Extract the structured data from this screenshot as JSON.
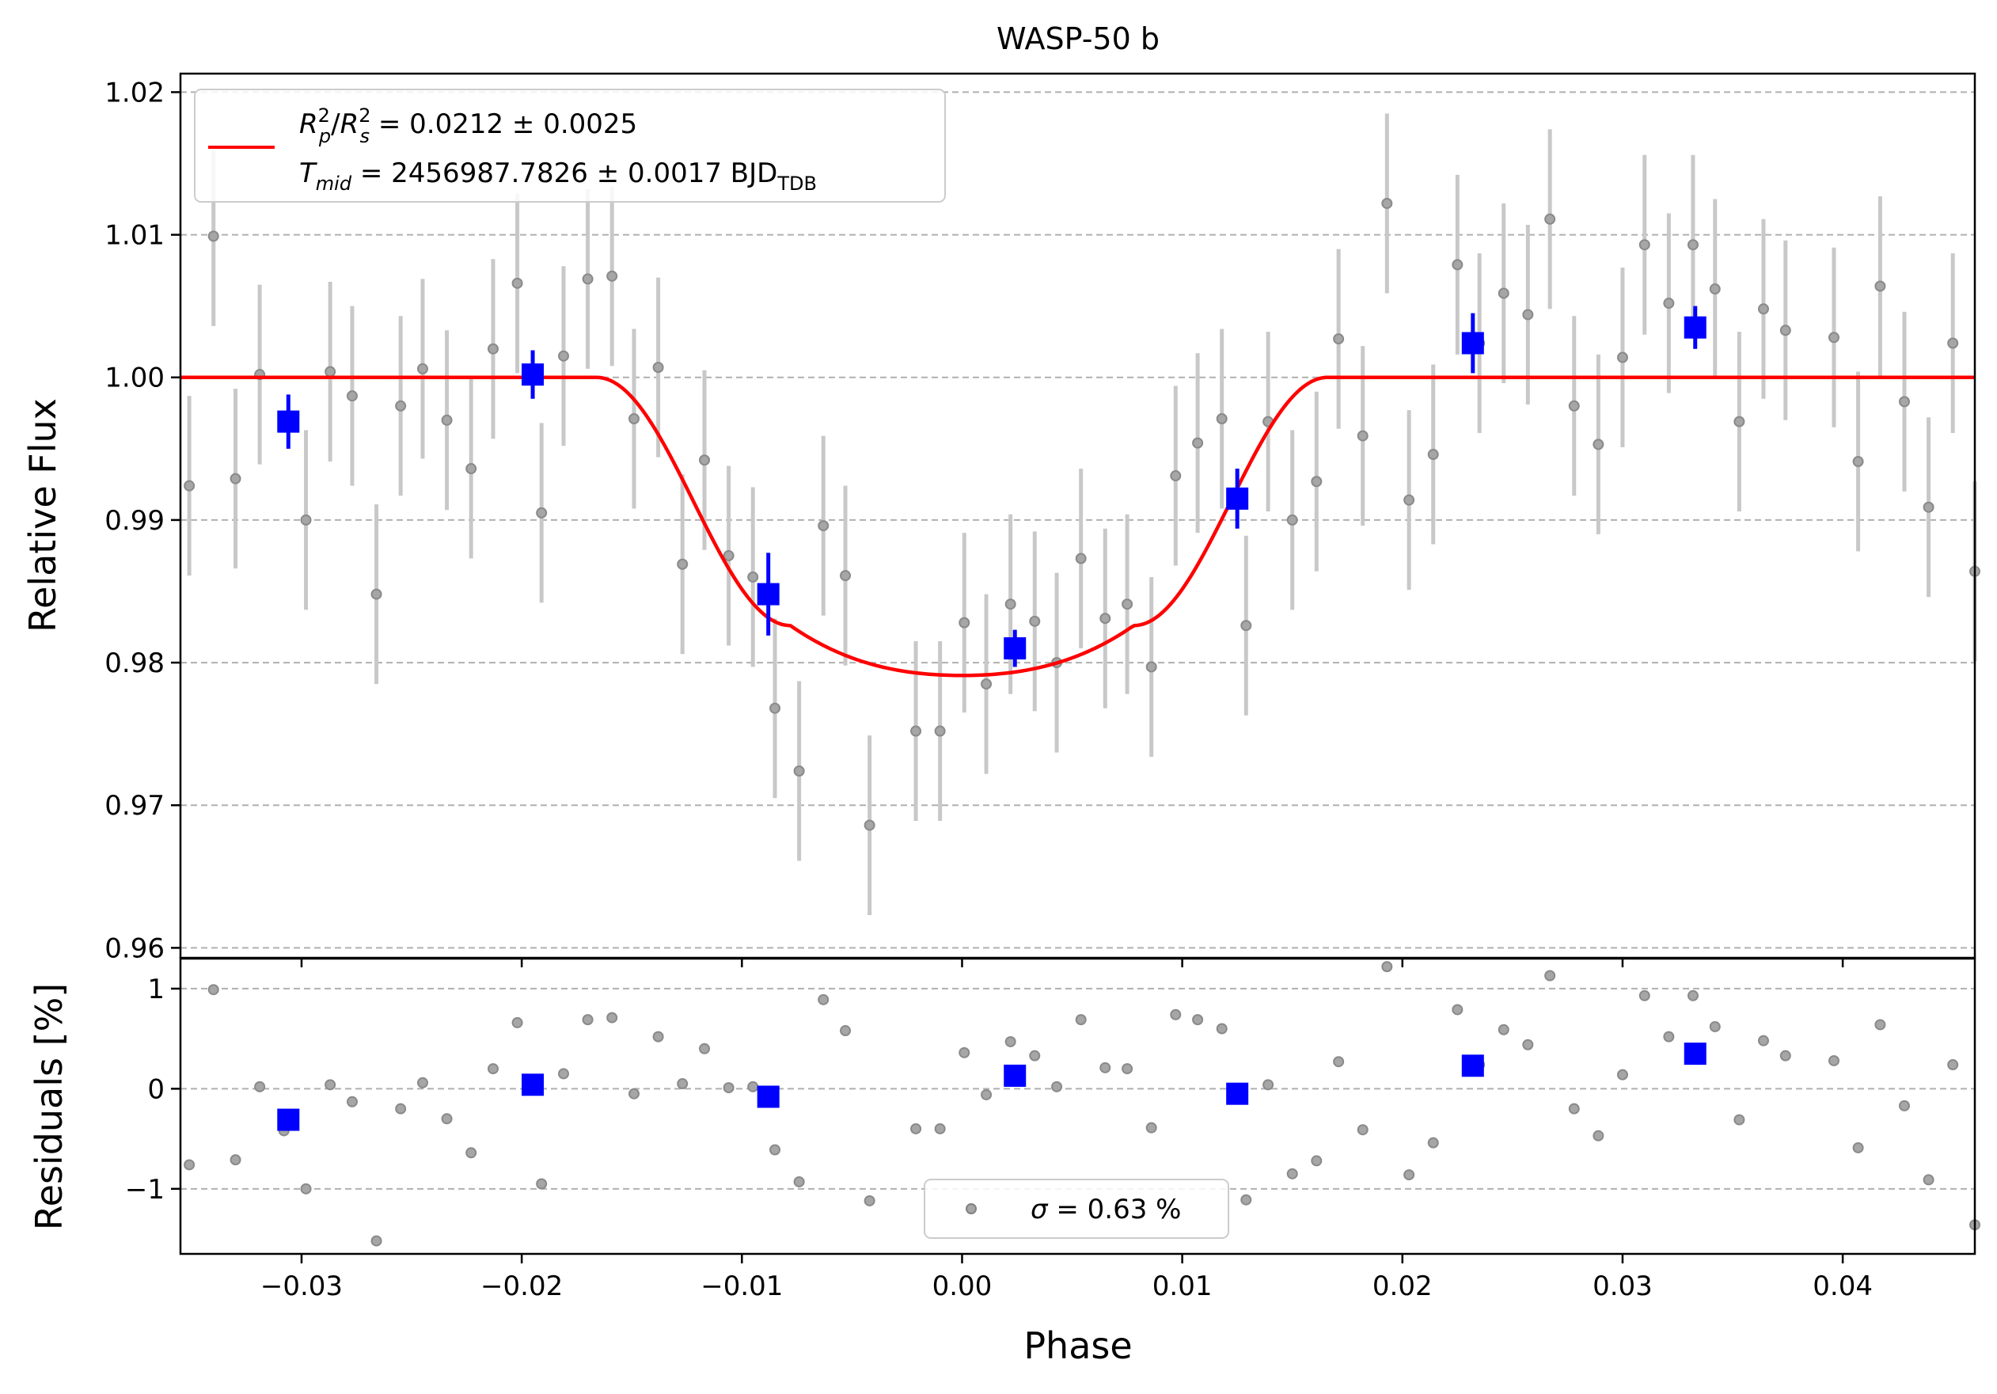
{
  "chart_data": [
    {
      "type": "scatter",
      "panel": "main",
      "title": "WASP-50 b",
      "xlabel": "",
      "ylabel": "Relative Flux",
      "xlim": [
        -0.0355,
        0.046
      ],
      "ylim": [
        0.9593,
        1.0213
      ],
      "x_ticks": [
        -0.03,
        -0.02,
        -0.01,
        0.0,
        0.01,
        0.02,
        0.03,
        0.04
      ],
      "x_tick_labels": [
        "",
        "",
        "",
        "",
        "",
        "",
        "",
        ""
      ],
      "y_ticks": [
        0.96,
        0.97,
        0.98,
        0.99,
        1.0,
        1.01,
        1.02
      ],
      "y_tick_labels": [
        "0.96",
        "0.97",
        "0.98",
        "0.99",
        "1.00",
        "1.01",
        "1.02"
      ],
      "grid": "horizontal dashed",
      "legend_position": "top-left",
      "legend": {
        "model_line_label_rp": "R",
        "rp_sub": "p",
        "rp_sup": "2",
        "slash": "/",
        "rs_main": "R",
        "rs_sub": "s",
        "rs_sup": "2",
        "rp_value": " = 0.0212 ± 0.0025",
        "tmid_main": "T",
        "tmid_sub": "mid",
        "tmid_value": " = 2456987.7826 ± 0.0017 BJD",
        "tdb_sub": "TDB"
      },
      "colors": {
        "model": "#ff0000",
        "binned": "#0000ff",
        "raw": "#808080"
      },
      "model": {
        "baseline": 1.0,
        "depth_min": 0.9791,
        "t14_half": 0.0166,
        "t23_half": 0.0078
      },
      "raw_points": {
        "x": [
          -0.0356,
          -0.0351,
          -0.034,
          -0.033,
          -0.0319,
          -0.0298,
          -0.0287,
          -0.0277,
          -0.0266,
          -0.0255,
          -0.0245,
          -0.0234,
          -0.0223,
          -0.0213,
          -0.0202,
          -0.0191,
          -0.0181,
          -0.017,
          -0.0159,
          -0.0149,
          -0.0138,
          -0.0127,
          -0.0117,
          -0.0106,
          -0.0095,
          -0.0085,
          -0.0074,
          -0.0063,
          -0.0053,
          -0.0042,
          -0.0021,
          -0.001,
          0.0001,
          0.0011,
          0.0022,
          0.0033,
          0.0043,
          0.0054,
          0.0065,
          0.0075,
          0.0086,
          0.0097,
          0.0107,
          0.0118,
          0.0129,
          0.0139,
          0.015,
          0.0161,
          0.0171,
          0.0182,
          0.0193,
          0.0203,
          0.0214,
          0.0225,
          0.0235,
          0.0246,
          0.0257,
          0.0267,
          0.0278,
          0.0289,
          0.03,
          0.031,
          0.0321,
          0.0332,
          0.0342,
          0.0353,
          0.0364,
          0.0374,
          0.0396,
          0.0407,
          0.0417,
          0.0428,
          0.0439,
          0.045,
          0.046
        ],
        "y": [
          1.0029,
          0.9924,
          1.0099,
          0.9929,
          1.0002,
          0.99,
          1.0004,
          0.9987,
          0.9848,
          0.998,
          1.0006,
          0.997,
          0.9936,
          1.002,
          1.0066,
          0.9905,
          1.0015,
          1.0069,
          1.0071,
          0.9971,
          1.0007,
          0.9869,
          0.9942,
          0.9875,
          0.986,
          0.9768,
          0.9724,
          0.9896,
          0.9861,
          0.9686,
          0.9752,
          0.9752,
          0.9828,
          0.9785,
          0.9841,
          0.9829,
          0.98,
          0.9873,
          0.9831,
          0.9841,
          0.9797,
          0.9931,
          0.9954,
          0.9971,
          0.9826,
          0.9969,
          0.99,
          0.9927,
          1.0027,
          0.9959,
          1.0122,
          0.9914,
          0.9946,
          1.0079,
          1.0024,
          1.0059,
          1.0044,
          1.0111,
          0.998,
          0.9953,
          1.0014,
          1.0093,
          1.0052,
          1.0093,
          1.0062,
          0.9969,
          1.0048,
          1.0033,
          1.0028,
          0.9941,
          1.0064,
          0.9983,
          0.9909,
          1.0024,
          0.9864
        ],
        "yerr": [
          0.0063,
          0.0063,
          0.0063,
          0.0063,
          0.0063,
          0.0063,
          0.0063,
          0.0063,
          0.0063,
          0.0063,
          0.0063,
          0.0063,
          0.0063,
          0.0063,
          0.0063,
          0.0063,
          0.0063,
          0.0063,
          0.0063,
          0.0063,
          0.0063,
          0.0063,
          0.0063,
          0.0063,
          0.0063,
          0.0063,
          0.0063,
          0.0063,
          0.0063,
          0.0063,
          0.0063,
          0.0063,
          0.0063,
          0.0063,
          0.0063,
          0.0063,
          0.0063,
          0.0063,
          0.0063,
          0.0063,
          0.0063,
          0.0063,
          0.0063,
          0.0063,
          0.0063,
          0.0063,
          0.0063,
          0.0063,
          0.0063,
          0.0063,
          0.0063,
          0.0063,
          0.0063,
          0.0063,
          0.0063,
          0.0063,
          0.0063,
          0.0063,
          0.0063,
          0.0063,
          0.0063,
          0.0063,
          0.0063,
          0.0063,
          0.0063,
          0.0063,
          0.0063,
          0.0063,
          0.0063,
          0.0063,
          0.0063,
          0.0063,
          0.0063,
          0.0063,
          0.0063
        ]
      },
      "binned_points": {
        "x": [
          -0.0306,
          -0.0195,
          -0.0088,
          0.0024,
          0.0125,
          0.0232,
          0.0333
        ],
        "y": [
          0.9969,
          1.0002,
          0.9848,
          0.981,
          0.9915,
          1.0024,
          1.0035
        ],
        "yerr": [
          0.0019,
          0.0017,
          0.0029,
          0.0013,
          0.0021,
          0.0021,
          0.0015
        ]
      }
    },
    {
      "type": "scatter",
      "panel": "residuals",
      "xlabel": "Phase",
      "ylabel": "Residuals [%]",
      "xlim": [
        -0.0355,
        0.046
      ],
      "ylim": [
        -1.65,
        1.3
      ],
      "x_ticks": [
        -0.03,
        -0.02,
        -0.01,
        0.0,
        0.01,
        0.02,
        0.03,
        0.04
      ],
      "x_tick_labels": [
        "−0.03",
        "−0.02",
        "−0.01",
        "0.00",
        "0.01",
        "0.02",
        "0.03",
        "0.04"
      ],
      "y_ticks": [
        -1,
        0,
        1
      ],
      "y_tick_labels": [
        "−1",
        "0",
        "1"
      ],
      "grid": "horizontal dashed",
      "legend_position": "bottom-center",
      "legend": {
        "sigma_symbol": "σ",
        "sigma_value": " = 0.63 %"
      },
      "raw_points": {
        "x": [
          -0.0356,
          -0.0351,
          -0.034,
          -0.033,
          -0.0319,
          -0.0308,
          -0.0298,
          -0.0287,
          -0.0277,
          -0.0266,
          -0.0255,
          -0.0245,
          -0.0234,
          -0.0223,
          -0.0213,
          -0.0202,
          -0.0191,
          -0.0181,
          -0.017,
          -0.0159,
          -0.0149,
          -0.0138,
          -0.0127,
          -0.0117,
          -0.0106,
          -0.0095,
          -0.0085,
          -0.0074,
          -0.0063,
          -0.0053,
          -0.0042,
          -0.0021,
          -0.001,
          0.0001,
          0.0011,
          0.0022,
          0.0033,
          0.0043,
          0.0054,
          0.0065,
          0.0075,
          0.0086,
          0.0097,
          0.0107,
          0.0118,
          0.0129,
          0.0139,
          0.015,
          0.0161,
          0.0171,
          0.0182,
          0.0193,
          0.0203,
          0.0214,
          0.0225,
          0.0235,
          0.0246,
          0.0257,
          0.0267,
          0.0278,
          0.0289,
          0.03,
          0.031,
          0.0321,
          0.0332,
          0.0342,
          0.0353,
          0.0364,
          0.0374,
          0.0396,
          0.0407,
          0.0417,
          0.0428,
          0.0439,
          0.045,
          0.046
        ],
        "y": [
          0.28,
          -0.76,
          0.99,
          -0.71,
          0.02,
          -0.42,
          -1.0,
          0.04,
          -0.13,
          -1.52,
          -0.2,
          0.06,
          -0.3,
          -0.64,
          0.2,
          0.66,
          -0.95,
          0.15,
          0.69,
          0.71,
          -0.05,
          0.52,
          0.05,
          0.4,
          0.01,
          0.02,
          -0.61,
          -0.93,
          0.89,
          0.58,
          -1.12,
          -0.4,
          -0.4,
          0.36,
          -0.06,
          0.47,
          0.33,
          0.02,
          0.69,
          0.21,
          0.2,
          -0.39,
          0.74,
          0.69,
          0.6,
          -1.11,
          0.04,
          -0.85,
          -0.72,
          0.27,
          -0.41,
          1.22,
          -0.86,
          -0.54,
          0.79,
          0.24,
          0.59,
          0.44,
          1.13,
          -0.2,
          -0.47,
          0.14,
          0.93,
          0.52,
          0.93,
          0.62,
          -0.31,
          0.48,
          0.33,
          0.28,
          -0.59,
          0.64,
          -0.17,
          -0.91,
          0.24,
          -1.36
        ]
      },
      "binned_points": {
        "x": [
          -0.0306,
          -0.0195,
          -0.0088,
          0.0024,
          0.0125,
          0.0232,
          0.0333
        ],
        "y": [
          -0.31,
          0.04,
          -0.08,
          0.13,
          -0.05,
          0.23,
          0.35
        ]
      }
    }
  ]
}
